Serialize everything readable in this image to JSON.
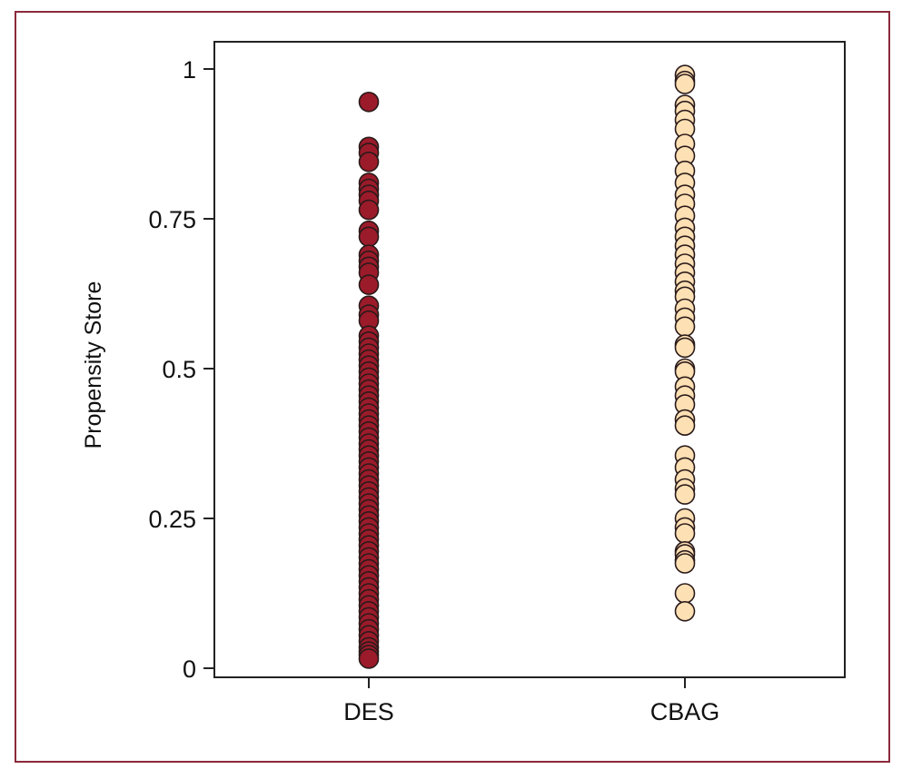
{
  "chart_data": {
    "type": "scatter",
    "ylabel": "Propensity Store",
    "ylim": [
      0,
      1
    ],
    "yticks": [
      {
        "value": 0,
        "label": "0"
      },
      {
        "value": 0.25,
        "label": "0.25"
      },
      {
        "value": 0.5,
        "label": "0.5"
      },
      {
        "value": 0.75,
        "label": "0.75"
      },
      {
        "value": 1,
        "label": "1"
      }
    ],
    "categories": [
      "DES",
      "CBAG"
    ],
    "grid": false,
    "series": [
      {
        "category": "DES",
        "color": "#9b1b2a",
        "values": [
          0.945,
          0.87,
          0.86,
          0.845,
          0.81,
          0.8,
          0.79,
          0.78,
          0.765,
          0.73,
          0.72,
          0.69,
          0.68,
          0.67,
          0.66,
          0.64,
          0.605,
          0.59,
          0.58,
          0.555,
          0.545,
          0.535,
          0.525,
          0.515,
          0.505,
          0.495,
          0.485,
          0.475,
          0.465,
          0.455,
          0.445,
          0.435,
          0.425,
          0.415,
          0.405,
          0.395,
          0.385,
          0.375,
          0.365,
          0.355,
          0.345,
          0.335,
          0.325,
          0.315,
          0.305,
          0.295,
          0.285,
          0.275,
          0.265,
          0.255,
          0.245,
          0.235,
          0.225,
          0.215,
          0.205,
          0.195,
          0.185,
          0.175,
          0.165,
          0.155,
          0.145,
          0.135,
          0.125,
          0.115,
          0.105,
          0.095,
          0.085,
          0.075,
          0.065,
          0.055,
          0.045,
          0.035,
          0.028,
          0.022,
          0.016
        ]
      },
      {
        "category": "CBAG",
        "color": "#fde0b4",
        "values": [
          0.99,
          0.98,
          0.975,
          0.94,
          0.93,
          0.915,
          0.9,
          0.875,
          0.855,
          0.83,
          0.81,
          0.79,
          0.775,
          0.755,
          0.735,
          0.72,
          0.705,
          0.69,
          0.675,
          0.66,
          0.645,
          0.63,
          0.62,
          0.6,
          0.585,
          0.57,
          0.54,
          0.535,
          0.5,
          0.495,
          0.47,
          0.455,
          0.44,
          0.415,
          0.405,
          0.355,
          0.335,
          0.315,
          0.3,
          0.29,
          0.25,
          0.235,
          0.225,
          0.195,
          0.19,
          0.18,
          0.175,
          0.125,
          0.095
        ]
      }
    ]
  }
}
